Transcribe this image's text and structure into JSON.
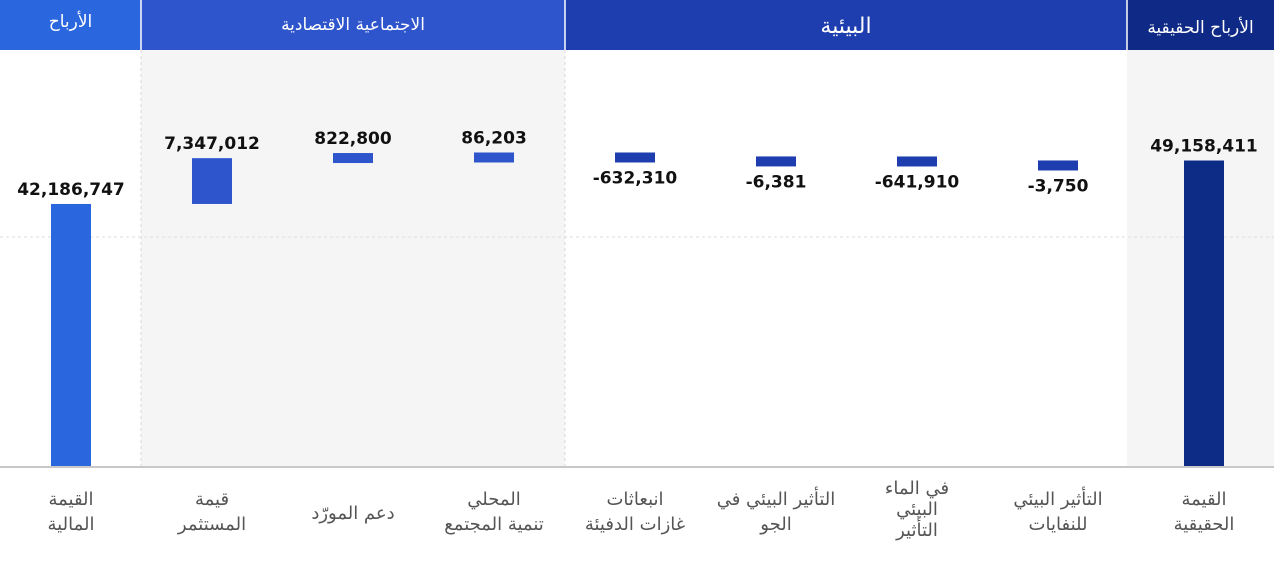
{
  "header": {
    "groups": [
      {
        "label": "الأرباح",
        "color": "#2a66de"
      },
      {
        "label": "الاجتماعية الاقتصادية",
        "color": "#2f55cc"
      },
      {
        "label": "البيئية",
        "color": "#1e3eb0"
      },
      {
        "label": "الأرباح الحقيقية",
        "color": "#0f2a86"
      }
    ]
  },
  "colors": {
    "financial": "#2a66de",
    "socio": "#2f55cc",
    "environmental": "#1e3eb0",
    "true_value": "#0d2c85"
  },
  "chart_data": {
    "type": "bar",
    "subtype": "waterfall",
    "categories": [
      "القيمة المالية",
      "قيمة المستثمر",
      "دعم المورّد",
      "تنمية المجتمع المحلي",
      "انبعاثات غازات الدفيئة",
      "التأثير البيئي في الجو",
      "التأثير البيئي في الماء",
      "التأثير البيئي للنفايات",
      "القيمة الحقيقية"
    ],
    "category_lines": [
      [
        "القيمة",
        "المالية"
      ],
      [
        "قيمة",
        "المستثمر"
      ],
      [
        "دعم المورّد"
      ],
      [
        "المحلي",
        "تنمية المجتمع"
      ],
      [
        "انبعاثات",
        "غازات الدفيئة"
      ],
      [
        "التأثير البيئي في",
        "الجو"
      ],
      [
        "في الماء",
        "البيئي",
        "التأثير"
      ],
      [
        "التأثير البيئي",
        "للنفايات"
      ],
      [
        "القيمة",
        "الحقيقية"
      ]
    ],
    "values": [
      42186747,
      7347012,
      822800,
      86203,
      -632310,
      -6381,
      -641910,
      -3750,
      49158411
    ],
    "labels": [
      "42,186,747",
      "7,347,012",
      "822,800",
      "86,203",
      "-632,310",
      "-6,381",
      "-641,910",
      "-3,750",
      "49,158,411"
    ],
    "bar_kind": [
      "total",
      "delta",
      "delta",
      "delta",
      "delta",
      "delta",
      "delta",
      "delta",
      "total"
    ],
    "groups": [
      "financial",
      "socio",
      "socio",
      "socio",
      "environmental",
      "environmental",
      "environmental",
      "environmental",
      "true_value"
    ],
    "grid": true
  }
}
